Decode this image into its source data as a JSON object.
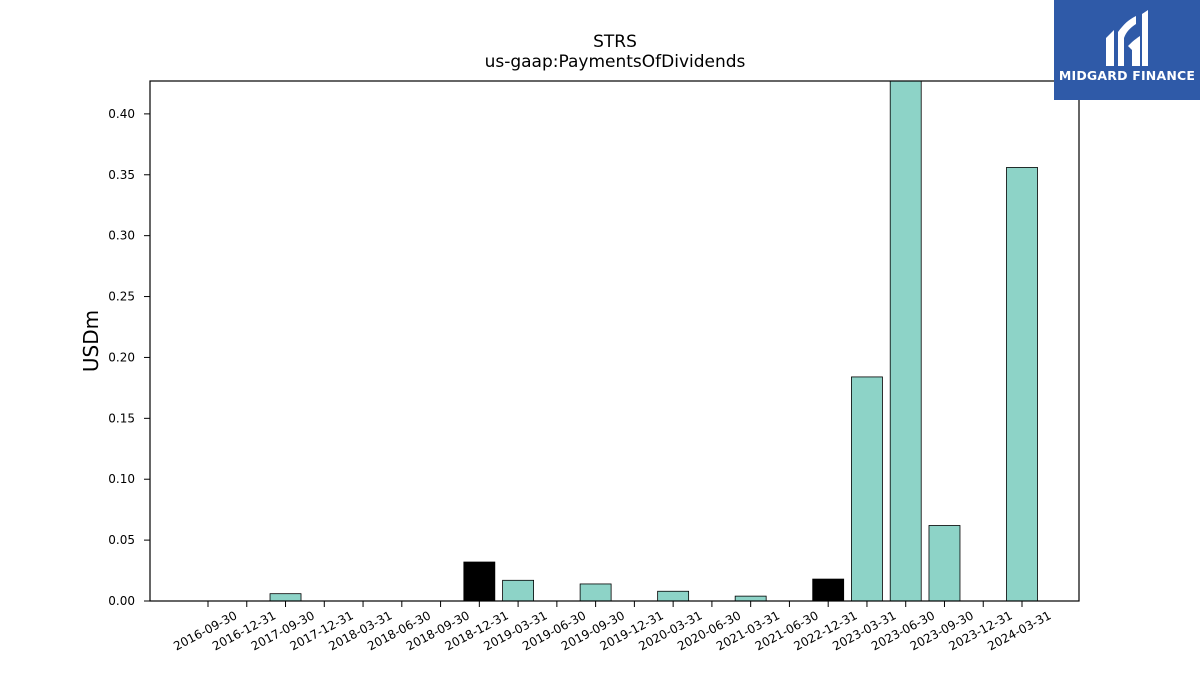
{
  "brand": {
    "name": "MIDGARD FINANCE",
    "color": "#2f5aa8"
  },
  "chart_data": {
    "type": "bar",
    "title": "STRS",
    "subtitle": "us-gaap:PaymentsOfDividends",
    "ylabel": "USDm",
    "xlabel": "",
    "ylim": [
      0,
      0.427
    ],
    "yticks": [
      "0.00",
      "0.05",
      "0.10",
      "0.15",
      "0.20",
      "0.25",
      "0.30",
      "0.35",
      "0.40"
    ],
    "grid": false,
    "categories": [
      "2016-09-30",
      "2016-12-31",
      "2017-09-30",
      "2017-12-31",
      "2018-03-31",
      "2018-06-30",
      "2018-09-30",
      "2018-12-31",
      "2019-03-31",
      "2019-06-30",
      "2019-09-30",
      "2019-12-31",
      "2020-03-31",
      "2020-06-30",
      "2021-03-31",
      "2021-06-30",
      "2022-12-31",
      "2023-03-31",
      "2023-06-30",
      "2023-09-30",
      "2023-12-31",
      "2024-03-31"
    ],
    "values": [
      0,
      0,
      0.006,
      0,
      0,
      0,
      0,
      0.032,
      0.017,
      0,
      0.014,
      0,
      0.008,
      0,
      0.004,
      0,
      0.018,
      0.184,
      0.427,
      0.062,
      0,
      0.356
    ],
    "bar_colors": [
      "#8dd3c7",
      "#8dd3c7",
      "#8dd3c7",
      "#8dd3c7",
      "#8dd3c7",
      "#8dd3c7",
      "#8dd3c7",
      "#000000",
      "#8dd3c7",
      "#8dd3c7",
      "#8dd3c7",
      "#8dd3c7",
      "#8dd3c7",
      "#8dd3c7",
      "#8dd3c7",
      "#8dd3c7",
      "#000000",
      "#8dd3c7",
      "#8dd3c7",
      "#8dd3c7",
      "#8dd3c7",
      "#8dd3c7"
    ]
  }
}
